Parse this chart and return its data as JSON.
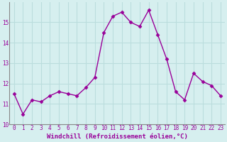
{
  "x": [
    0,
    1,
    2,
    3,
    4,
    5,
    6,
    7,
    8,
    9,
    10,
    11,
    12,
    13,
    14,
    15,
    16,
    17,
    18,
    19,
    20,
    21,
    22,
    23
  ],
  "y": [
    11.5,
    10.5,
    11.2,
    11.1,
    11.4,
    11.6,
    11.5,
    11.4,
    11.8,
    12.3,
    14.5,
    15.3,
    15.5,
    15.0,
    14.8,
    15.6,
    14.4,
    13.2,
    11.6,
    11.2,
    12.5,
    12.1,
    11.9,
    11.4
  ],
  "line_color": "#990099",
  "marker": "D",
  "marker_size": 2.5,
  "bg_color": "#d6efef",
  "grid_color": "#bbdddd",
  "spine_color": "#888888",
  "xlabel": "Windchill (Refroidissement éolien,°C)",
  "xlabel_color": "#990099",
  "tick_color": "#990099",
  "ylim": [
    10,
    16
  ],
  "xlim": [
    -0.5,
    23.5
  ],
  "yticks": [
    10,
    11,
    12,
    13,
    14,
    15
  ],
  "xticks": [
    0,
    1,
    2,
    3,
    4,
    5,
    6,
    7,
    8,
    9,
    10,
    11,
    12,
    13,
    14,
    15,
    16,
    17,
    18,
    19,
    20,
    21,
    22,
    23
  ],
  "tick_fontsize": 5.5,
  "xlabel_fontsize": 6.5,
  "line_width": 1.0
}
